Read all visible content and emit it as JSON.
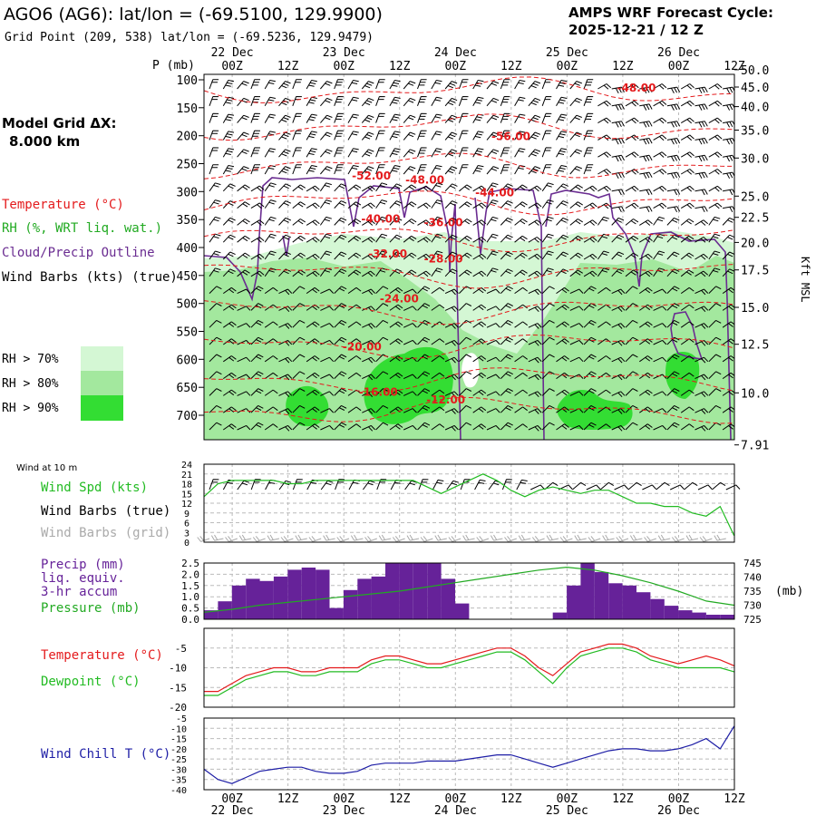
{
  "header": {
    "station": "AGO6 (AG6):  lat/lon = (-69.5100, 129.9900)",
    "grid_point": "Grid Point (209, 538) lat/lon = (-69.5236, 129.9479)",
    "forecast_title": "AMPS WRF Forecast Cycle:",
    "forecast_cycle": "2025-12-21 / 12  Z",
    "model_grid_label": "Model Grid ΔX:",
    "model_grid_value": "8.000 km"
  },
  "time_axis": {
    "hour_labels": [
      "00Z",
      "12Z",
      "00Z",
      "12Z",
      "00Z",
      "12Z",
      "00Z",
      "12Z",
      "00Z",
      "12Z"
    ],
    "hour_label_x": [
      0.06,
      12.06,
      24.06,
      36.06,
      48.06,
      60.06,
      72.06,
      84.06,
      96.06,
      108.06
    ],
    "day_labels": [
      "22 Dec",
      "23 Dec",
      "24 Dec",
      "25 Dec",
      "26 Dec"
    ],
    "day_label_x": [
      0.06,
      24.06,
      48.06,
      72.06,
      96.06
    ],
    "start_hour": -6.0,
    "end_hour": 108.06
  },
  "legend": {
    "temperature": "Temperature (°C)",
    "rh": "RH (%, WRT liq. wat.)",
    "cloud": "Cloud/Precip Outline",
    "wind_barbs": "Wind Barbs (kts) (true)",
    "rh70": "RH > 70%",
    "rh80": "RH > 80%",
    "rh90": "RH > 90%"
  },
  "colors": {
    "rh70": "#d4f7d4",
    "rh80": "#a3e89e",
    "rh90": "#33dd33",
    "temperature": "#e41a1c",
    "cloud": "#6a2c91",
    "precip": "#662299",
    "pressure": "#22aa22",
    "dewpoint": "#22bb22",
    "wind_spd": "#22bb22",
    "wind_chill": "#1e1ea6",
    "gray_barb": "#aaaaaa"
  },
  "chart_data": [
    {
      "type": "contour",
      "title": "Vertical cross-section: temperature, RH, wind barbs",
      "yaxis_left_label": "P (mb)",
      "y_ticks_mb": [
        100,
        150,
        200,
        250,
        300,
        350,
        400,
        450,
        500,
        550,
        600,
        650,
        700
      ],
      "yaxis_right_label": "Kft MSL",
      "right_ticks_kft": [
        "50.0",
        "45.0",
        "40.0",
        "35.0",
        "30.0",
        "25.0",
        "22.5",
        "20.0",
        "17.5",
        "15.0",
        "12.5",
        "10.0",
        "7.91"
      ],
      "right_ticks_mb": [
        82,
        113,
        148,
        190,
        240,
        308,
        346,
        391,
        440,
        507,
        573,
        660,
        753
      ],
      "temperature_labels": [
        {
          "text": "-48.00",
          "hour": 87.0,
          "mb": 121
        },
        {
          "text": "-56.00",
          "hour": 60.0,
          "mb": 208
        },
        {
          "text": "-52.00",
          "hour": 30.0,
          "mb": 278
        },
        {
          "text": "-48.00",
          "hour": 41.5,
          "mb": 286
        },
        {
          "text": "-44.00",
          "hour": 56.5,
          "mb": 308
        },
        {
          "text": "-40.00",
          "hour": 32.0,
          "mb": 355
        },
        {
          "text": "-36.00",
          "hour": 45.5,
          "mb": 362
        },
        {
          "text": "-32.00",
          "hour": 33.5,
          "mb": 418
        },
        {
          "text": "-28.00",
          "hour": 45.5,
          "mb": 427
        },
        {
          "text": "-24.00",
          "hour": 36.0,
          "mb": 498
        },
        {
          "text": "-20.00",
          "hour": 28.0,
          "mb": 584
        },
        {
          "text": "-16.00",
          "hour": 31.5,
          "mb": 665
        },
        {
          "text": "-12.00",
          "hour": 46.0,
          "mb": 679
        }
      ]
    },
    {
      "type": "line",
      "title": "Wind at 10 m",
      "labels": {
        "spd": "Wind Spd (kts)",
        "barbs_true": "Wind Barbs (true)",
        "barbs_grid": "Wind Barbs (grid)"
      },
      "y_ticks": [
        0,
        3,
        6,
        9,
        12,
        15,
        18,
        21,
        24
      ],
      "ylim": [
        0,
        24
      ],
      "x": [
        -6,
        -3,
        0,
        3,
        6,
        9,
        12,
        15,
        18,
        21,
        24,
        27,
        30,
        33,
        36,
        39,
        42,
        45,
        48,
        51,
        54,
        57,
        60,
        63,
        66,
        69,
        72,
        75,
        78,
        81,
        84,
        87,
        90,
        93,
        96,
        99,
        102,
        105,
        108
      ],
      "series": [
        {
          "name": "Wind Spd (kts)",
          "values": [
            14,
            18,
            19,
            19,
            19,
            19,
            18,
            18,
            19,
            19,
            19,
            19,
            19,
            19,
            19,
            19,
            17,
            15,
            17,
            19,
            21,
            19,
            16,
            14,
            16,
            17,
            16,
            15,
            16,
            16,
            14,
            12,
            12,
            11,
            11,
            9,
            8,
            11,
            2
          ]
        }
      ]
    },
    {
      "type": "bar+line",
      "title": "Precip and Pressure",
      "labels": {
        "precip": "Precip (mm)",
        "liq": "liq. equiv.",
        "accum": "3-hr accum",
        "pressure": "Pressure (mb)",
        "right_unit": "(mb)"
      },
      "left_ticks": [
        "0.0",
        "0.5",
        "1.0",
        "1.5",
        "2.0",
        "2.5"
      ],
      "left_lim": [
        0,
        2.5
      ],
      "right_ticks": [
        "725",
        "730",
        "735",
        "740",
        "745"
      ],
      "right_lim": [
        725,
        745
      ],
      "precip_x": [
        -4.5,
        -1.5,
        1.5,
        4.5,
        7.5,
        10.5,
        13.5,
        16.5,
        19.5,
        22.5,
        25.5,
        28.5,
        31.5,
        34.5,
        37.5,
        40.5,
        43.5,
        46.5,
        49.5,
        52.5,
        55.5,
        58.5,
        61.5,
        64.5,
        67.5,
        70.5,
        73.5,
        76.5,
        79.5,
        82.5,
        85.5,
        88.5,
        91.5,
        94.5,
        97.5,
        100.5,
        103.5,
        106.5
      ],
      "precip_values": [
        0.4,
        0.8,
        1.5,
        1.8,
        1.7,
        1.9,
        2.2,
        2.3,
        2.2,
        0.5,
        1.3,
        1.8,
        1.9,
        2.5,
        2.5,
        2.5,
        2.5,
        1.8,
        0.7,
        0,
        0,
        0,
        0,
        0,
        0,
        0.3,
        1.5,
        2.5,
        2.1,
        1.6,
        1.5,
        1.2,
        0.9,
        0.6,
        0.4,
        0.3,
        0.2,
        0.2
      ],
      "pressure_x": [
        -6,
        0,
        6,
        12,
        18,
        24,
        30,
        36,
        42,
        48,
        54,
        60,
        66,
        72,
        78,
        84,
        90,
        96,
        102,
        108
      ],
      "pressure_values": [
        727.5,
        728.5,
        730,
        731,
        732,
        733,
        734,
        735,
        736.5,
        738,
        739.5,
        741,
        742.5,
        743.5,
        742.5,
        740.5,
        738,
        735,
        731.5,
        730
      ]
    },
    {
      "type": "line",
      "title": "Temperature and Dewpoint",
      "labels": {
        "temperature": "Temperature (°C)",
        "dewpoint": "Dewpoint (°C)"
      },
      "y_ticks": [
        -5,
        -10,
        -15,
        -20
      ],
      "ylim": [
        -20,
        0
      ],
      "x": [
        -6,
        -3,
        0,
        3,
        6,
        9,
        12,
        15,
        18,
        21,
        24,
        27,
        30,
        33,
        36,
        39,
        42,
        45,
        48,
        51,
        54,
        57,
        60,
        63,
        66,
        69,
        72,
        75,
        78,
        81,
        84,
        87,
        90,
        93,
        96,
        99,
        102,
        105,
        108
      ],
      "series": [
        {
          "name": "Temperature",
          "values": [
            -16,
            -16,
            -14,
            -12,
            -11,
            -10,
            -10,
            -11,
            -11,
            -10,
            -10,
            -10,
            -8,
            -7,
            -7,
            -8,
            -9,
            -9,
            -8,
            -7,
            -6,
            -5,
            -5,
            -7,
            -10,
            -12,
            -9,
            -6,
            -5,
            -4,
            -4,
            -5,
            -7,
            -8,
            -9,
            -8,
            -7,
            -8,
            -9.5
          ]
        },
        {
          "name": "Dewpoint",
          "values": [
            -17,
            -17,
            -15,
            -13,
            -12,
            -11,
            -11,
            -12,
            -12,
            -11,
            -11,
            -11,
            -9,
            -8,
            -8,
            -9,
            -10,
            -10,
            -9,
            -8,
            -7,
            -6,
            -6,
            -8,
            -11,
            -14,
            -10,
            -7,
            -6,
            -5,
            -5,
            -6,
            -8,
            -9,
            -10,
            -10,
            -10,
            -10,
            -11
          ]
        }
      ]
    },
    {
      "type": "line",
      "title": "Wind Chill",
      "labels": {
        "wind_chill": "Wind Chill T (°C)"
      },
      "y_ticks": [
        -5,
        -10,
        -15,
        -20,
        -25,
        -30,
        -35,
        -40
      ],
      "ylim": [
        -40,
        -5
      ],
      "x": [
        -6,
        -3,
        0,
        3,
        6,
        9,
        12,
        15,
        18,
        21,
        24,
        27,
        30,
        33,
        36,
        39,
        42,
        45,
        48,
        51,
        54,
        57,
        60,
        63,
        66,
        69,
        72,
        75,
        78,
        81,
        84,
        87,
        90,
        93,
        96,
        99,
        102,
        105,
        108
      ],
      "series": [
        {
          "name": "Wind Chill T",
          "values": [
            -30,
            -35,
            -37,
            -34,
            -31,
            -30,
            -29,
            -29,
            -31,
            -32,
            -32,
            -31,
            -28,
            -27,
            -27,
            -27,
            -26,
            -26,
            -26,
            -25,
            -24,
            -23,
            -23,
            -25,
            -27,
            -29,
            -27,
            -25,
            -23,
            -21,
            -20,
            -20,
            -21,
            -21,
            -20,
            -18,
            -15,
            -20,
            -9
          ]
        }
      ]
    }
  ]
}
